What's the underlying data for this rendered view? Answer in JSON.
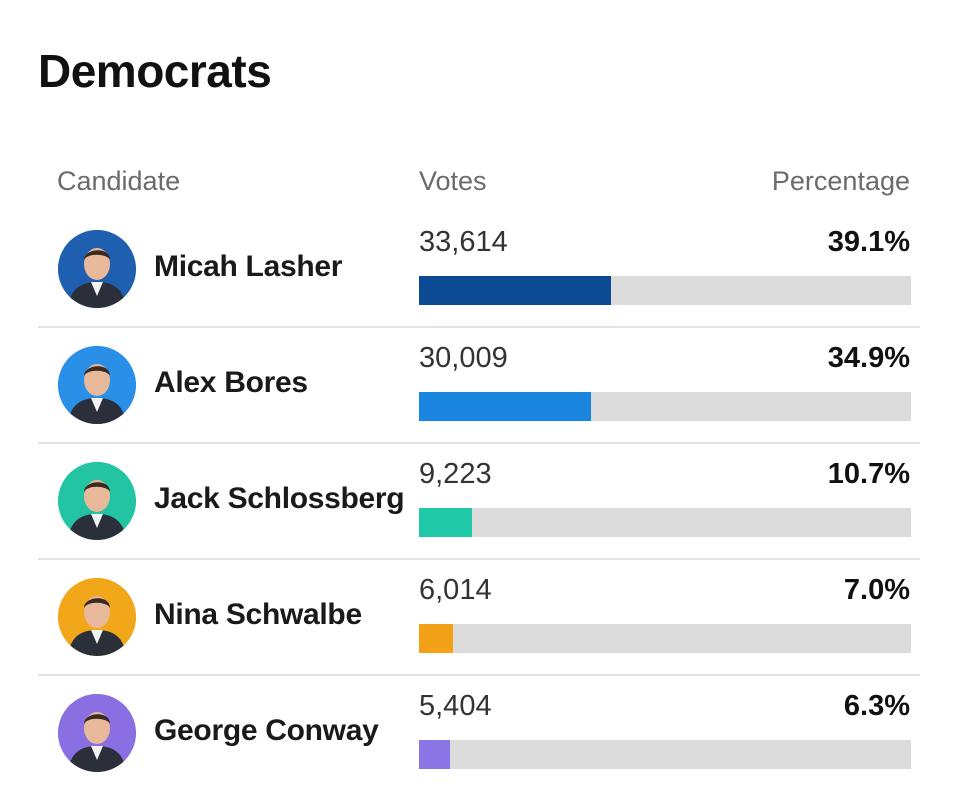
{
  "title": "Democrats",
  "headers": {
    "candidate": "Candidate",
    "votes": "Votes",
    "percentage": "Percentage"
  },
  "chart_data": {
    "type": "bar",
    "categories": [
      "Micah Lasher",
      "Alex Bores",
      "Jack Schlossberg",
      "Nina Schwalbe",
      "George Conway"
    ],
    "series": [
      {
        "values": [
          33614,
          30009,
          9223,
          6014,
          5404
        ]
      }
    ],
    "percentages": [
      39.1,
      34.9,
      10.7,
      7.0,
      6.3
    ],
    "xlim": [
      0,
      100
    ]
  },
  "rows": [
    {
      "name": "Micah Lasher",
      "votes": "33,614",
      "percentage": "39.1%",
      "pct_value": 39.1,
      "color": "#0d4a94",
      "avatar_bg": "#1f5fb0",
      "avatar_icon": "candidate-photo"
    },
    {
      "name": "Alex Bores",
      "votes": "30,009",
      "percentage": "34.9%",
      "pct_value": 34.9,
      "color": "#1b86e0",
      "avatar_bg": "#2a8fe6",
      "avatar_icon": "candidate-photo"
    },
    {
      "name": "Jack Schlossberg",
      "votes": "9,223",
      "percentage": "10.7%",
      "pct_value": 10.7,
      "color": "#1fc9a8",
      "avatar_bg": "#22c4a3",
      "avatar_icon": "candidate-photo"
    },
    {
      "name": "Nina Schwalbe",
      "votes": "6,014",
      "percentage": "7.0%",
      "pct_value": 7.0,
      "color": "#f2a118",
      "avatar_bg": "#f2a619",
      "avatar_icon": "candidate-photo"
    },
    {
      "name": "George Conway",
      "votes": "5,404",
      "percentage": "6.3%",
      "pct_value": 6.3,
      "color": "#8b74e6",
      "avatar_bg": "#8a6fe3",
      "avatar_icon": "candidate-photo"
    }
  ]
}
